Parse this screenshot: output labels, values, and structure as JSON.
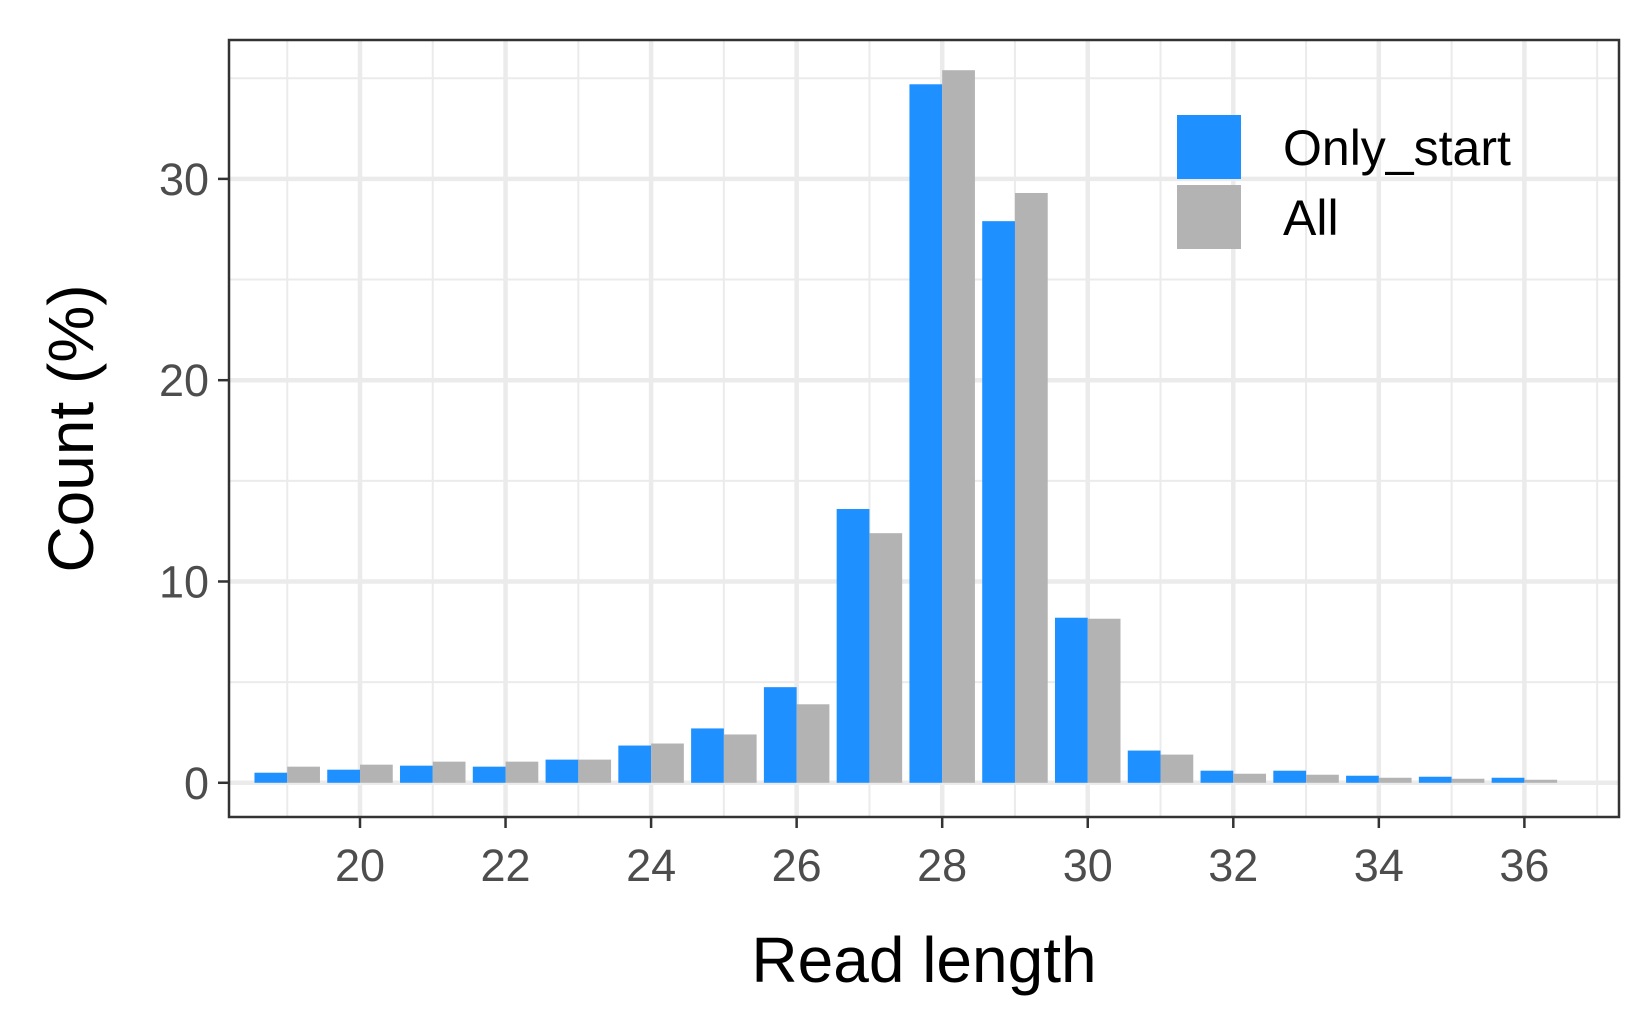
{
  "chart_data": {
    "type": "bar",
    "xlabel": "Read length",
    "ylabel": "Count (%)",
    "categories": [
      19,
      20,
      21,
      22,
      23,
      24,
      25,
      26,
      27,
      28,
      29,
      30,
      31,
      32,
      33,
      34,
      35,
      36
    ],
    "x_ticks": [
      "20",
      "22",
      "24",
      "26",
      "28",
      "30",
      "32",
      "34",
      "36"
    ],
    "y_ticks": [
      "0",
      "10",
      "20",
      "30"
    ],
    "xlim": [
      18.2,
      37.3
    ],
    "ylim": [
      -1.7,
      36.9
    ],
    "grid": true,
    "legend_position": "top-right",
    "series": [
      {
        "name": "Only_start",
        "color": "#1e90ff",
        "values": [
          0.5,
          0.65,
          0.85,
          0.8,
          1.15,
          1.85,
          2.7,
          4.75,
          13.6,
          34.7,
          27.9,
          8.2,
          1.6,
          0.6,
          0.6,
          0.35,
          0.3,
          0.25
        ]
      },
      {
        "name": "All",
        "color": "#b3b3b3",
        "values": [
          0.8,
          0.9,
          1.05,
          1.05,
          1.15,
          1.95,
          2.4,
          3.9,
          12.4,
          35.4,
          29.3,
          8.15,
          1.4,
          0.45,
          0.4,
          0.25,
          0.2,
          0.15
        ]
      }
    ]
  }
}
